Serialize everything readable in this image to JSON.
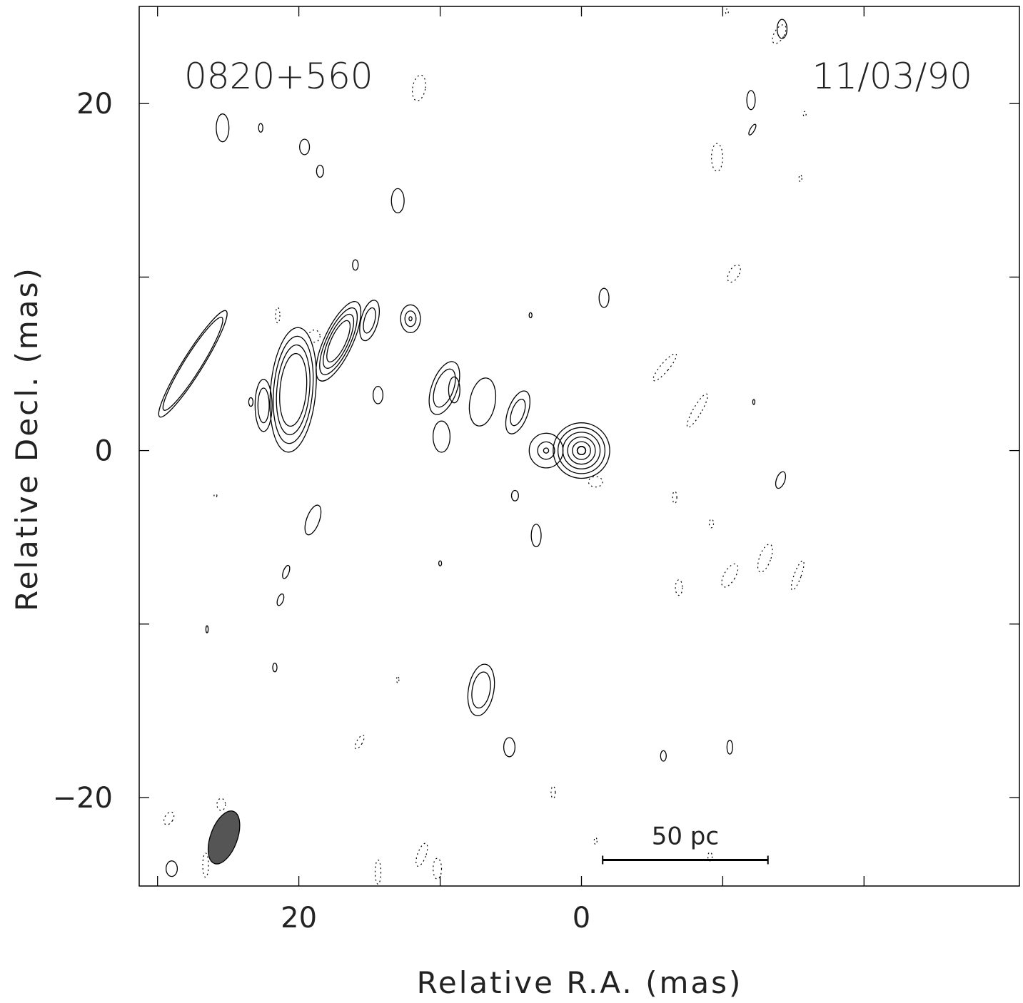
{
  "chart_data": {
    "type": "contour",
    "source_label": "0820+560",
    "epoch_label": "11/03/90",
    "xlabel": "Relative R.A. (mas)",
    "ylabel": "Relative Decl. (mas)",
    "xlim": [
      31.3,
      -31.0
    ],
    "ylim": [
      -25.1,
      25.6
    ],
    "x_ticks": [
      30,
      20,
      10,
      0,
      -10,
      -20
    ],
    "x_tick_labels": [
      "",
      "20",
      "",
      "0",
      "",
      ""
    ],
    "y_ticks": [
      20,
      10,
      0,
      -10,
      -20
    ],
    "y_tick_labels": [
      "20",
      "",
      "0",
      "",
      "−20"
    ],
    "scale_bar": {
      "label": "50 pc",
      "x_start": -1.5,
      "x_end": -13.2,
      "y": -23.6
    },
    "beam": {
      "x": 25.3,
      "y": -22.3,
      "major": 1.6,
      "minor": 0.95,
      "pa_deg": 20,
      "color": "#555555"
    },
    "jet_components": [
      {
        "x": 0.0,
        "y": 0.0,
        "a": 2.0,
        "b": 1.6,
        "pa": 0,
        "levels": 11,
        "spacing": 0.34
      },
      {
        "x": 2.5,
        "y": 0.0,
        "a": 1.2,
        "b": 1.0,
        "pa": 0,
        "levels": 3,
        "spacing": 0.6
      },
      {
        "x": 4.5,
        "y": 2.2,
        "a": 0.7,
        "b": 1.3,
        "pa": 20,
        "levels": 2,
        "spacing": 0.5
      },
      {
        "x": 7.0,
        "y": 2.8,
        "a": 0.9,
        "b": 1.4,
        "pa": 10,
        "levels": 1,
        "spacing": 0.5
      },
      {
        "x": 9.7,
        "y": 3.6,
        "a": 0.9,
        "b": 1.6,
        "pa": 20,
        "levels": 2,
        "spacing": 0.45
      },
      {
        "x": 9.9,
        "y": 0.8,
        "a": 0.6,
        "b": 0.9,
        "pa": 0,
        "levels": 1,
        "spacing": 0.5
      },
      {
        "x": 12.1,
        "y": 7.6,
        "a": 0.7,
        "b": 0.8,
        "pa": 0,
        "levels": 3,
        "spacing": 0.35
      },
      {
        "x": 15.0,
        "y": 7.5,
        "a": 0.6,
        "b": 1.2,
        "pa": 15,
        "levels": 2,
        "spacing": 0.45
      },
      {
        "x": 17.2,
        "y": 6.3,
        "a": 1.0,
        "b": 2.5,
        "pa": 25,
        "levels": 4,
        "spacing": 0.4
      },
      {
        "x": 20.4,
        "y": 3.5,
        "a": 1.6,
        "b": 3.6,
        "pa": 5,
        "levels": 4,
        "spacing": 0.5
      },
      {
        "x": 22.5,
        "y": 2.6,
        "a": 0.6,
        "b": 1.5,
        "pa": 0,
        "levels": 2,
        "spacing": 0.5
      },
      {
        "x": 27.5,
        "y": 5.0,
        "a": 0.7,
        "b": 3.6,
        "pa": 32,
        "levels": 2,
        "spacing": 0.45
      },
      {
        "x": 7.1,
        "y": -13.8,
        "a": 0.9,
        "b": 1.5,
        "pa": 10,
        "levels": 2,
        "spacing": 0.45
      }
    ],
    "positive_blobs": [
      [
        25.4,
        18.6,
        0.45,
        0.8,
        0
      ],
      [
        22.7,
        18.6,
        0.15,
        0.25,
        0
      ],
      [
        19.6,
        17.5,
        0.35,
        0.45,
        0
      ],
      [
        18.5,
        16.1,
        0.25,
        0.35,
        0
      ],
      [
        13.0,
        14.4,
        0.45,
        0.7,
        0
      ],
      [
        16.0,
        10.7,
        0.2,
        0.3,
        0
      ],
      [
        -1.6,
        8.8,
        0.35,
        0.55,
        0
      ],
      [
        -12.0,
        20.2,
        0.3,
        0.55,
        0
      ],
      [
        -14.2,
        24.3,
        0.35,
        0.55,
        0
      ],
      [
        -12.1,
        18.5,
        0.15,
        0.35,
        30
      ],
      [
        33.5,
        13.9,
        0.25,
        0.45,
        0
      ],
      [
        23.4,
        2.8,
        0.15,
        0.25,
        0
      ],
      [
        14.4,
        3.2,
        0.35,
        0.5,
        0
      ],
      [
        9.0,
        3.5,
        0.4,
        0.75,
        0
      ],
      [
        3.6,
        7.8,
        0.1,
        0.15,
        0
      ],
      [
        4.7,
        -2.6,
        0.25,
        0.3,
        0
      ],
      [
        3.2,
        -4.9,
        0.35,
        0.65,
        0
      ],
      [
        19.0,
        -4.0,
        0.45,
        0.9,
        20
      ],
      [
        20.9,
        -7.0,
        0.2,
        0.4,
        20
      ],
      [
        21.3,
        -8.6,
        0.2,
        0.35,
        20
      ],
      [
        10.0,
        -6.5,
        0.1,
        0.15,
        0
      ],
      [
        5.1,
        -17.1,
        0.4,
        0.55,
        0
      ],
      [
        -5.8,
        -17.6,
        0.2,
        0.3,
        0
      ],
      [
        -10.5,
        -17.1,
        0.2,
        0.4,
        0
      ],
      [
        -14.1,
        -1.7,
        0.3,
        0.5,
        20
      ],
      [
        -12.2,
        2.8,
        0.05,
        0.15,
        0
      ],
      [
        21.7,
        -12.5,
        0.15,
        0.25,
        0
      ],
      [
        26.5,
        -10.3,
        0.08,
        0.2,
        0
      ],
      [
        29.0,
        -24.1,
        0.4,
        0.45,
        0
      ],
      [
        32.1,
        23.1,
        0.2,
        0.25,
        0
      ]
    ],
    "negative_blobs": [
      [
        11.5,
        20.9,
        0.45,
        0.75,
        10
      ],
      [
        -9.6,
        16.9,
        0.4,
        0.8,
        0
      ],
      [
        -10.8,
        10.2,
        0.35,
        0.55,
        30
      ],
      [
        -5.9,
        4.8,
        0.3,
        1.0,
        40
      ],
      [
        -8.2,
        2.3,
        0.3,
        1.1,
        30
      ],
      [
        -13.0,
        -6.2,
        0.4,
        0.85,
        20
      ],
      [
        -10.5,
        -7.2,
        0.4,
        0.75,
        30
      ],
      [
        -6.9,
        -7.9,
        0.25,
        0.45,
        0
      ],
      [
        -15.3,
        -7.2,
        0.25,
        0.9,
        20
      ],
      [
        -9.2,
        -4.2,
        0.15,
        0.25,
        0
      ],
      [
        -6.6,
        -2.7,
        0.15,
        0.35,
        0
      ],
      [
        -14.0,
        24.0,
        0.35,
        0.6,
        30
      ],
      [
        -15.5,
        15.7,
        0.1,
        0.2,
        0
      ],
      [
        -15.8,
        19.4,
        0.1,
        0.15,
        0
      ],
      [
        -1.0,
        -1.8,
        0.5,
        0.3,
        0
      ],
      [
        -10.3,
        25.3,
        0.1,
        0.15,
        0
      ],
      [
        21.5,
        7.8,
        0.15,
        0.45,
        0
      ],
      [
        18.9,
        6.6,
        0.4,
        0.35,
        0
      ],
      [
        13.0,
        -13.2,
        0.08,
        0.2,
        0
      ],
      [
        15.7,
        -16.8,
        0.2,
        0.45,
        30
      ],
      [
        2.0,
        -19.7,
        0.15,
        0.35,
        0
      ],
      [
        -1.0,
        -22.5,
        0.1,
        0.2,
        0
      ],
      [
        -9.1,
        -23.4,
        0.15,
        0.25,
        0
      ],
      [
        25.5,
        -20.4,
        0.3,
        0.35,
        0
      ],
      [
        29.2,
        -21.2,
        0.3,
        0.4,
        30
      ],
      [
        25.0,
        -21.9,
        0.2,
        0.6,
        0
      ],
      [
        26.6,
        -23.9,
        0.2,
        0.7,
        0
      ],
      [
        14.4,
        -24.3,
        0.2,
        0.7,
        0
      ],
      [
        11.3,
        -23.3,
        0.3,
        0.7,
        20
      ],
      [
        10.2,
        -24.1,
        0.3,
        0.6,
        0
      ],
      [
        25.9,
        -2.6,
        0.1,
        0.1,
        0
      ]
    ]
  }
}
